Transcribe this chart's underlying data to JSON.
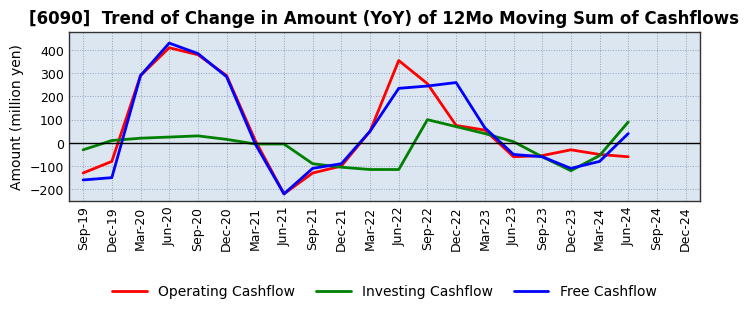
{
  "title": "[6090]  Trend of Change in Amount (YoY) of 12Mo Moving Sum of Cashflows",
  "ylabel": "Amount (million yen)",
  "x_labels": [
    "Sep-19",
    "Dec-19",
    "Mar-20",
    "Jun-20",
    "Sep-20",
    "Dec-20",
    "Mar-21",
    "Jun-21",
    "Sep-21",
    "Dec-21",
    "Mar-22",
    "Jun-22",
    "Sep-22",
    "Dec-22",
    "Mar-23",
    "Jun-23",
    "Sep-23",
    "Dec-23",
    "Mar-24",
    "Jun-24",
    "Sep-24",
    "Dec-24"
  ],
  "operating_cashflow": [
    -130,
    -80,
    290,
    410,
    380,
    290,
    10,
    -220,
    -130,
    -100,
    50,
    355,
    255,
    75,
    55,
    -60,
    -55,
    -30,
    -50,
    -60,
    null,
    null
  ],
  "investing_cashflow": [
    -30,
    10,
    20,
    25,
    30,
    15,
    -5,
    -5,
    -90,
    -105,
    -115,
    -115,
    100,
    70,
    40,
    5,
    -60,
    -120,
    -55,
    90,
    null,
    null
  ],
  "free_cashflow": [
    -160,
    -150,
    290,
    430,
    385,
    285,
    -5,
    -220,
    -110,
    -90,
    50,
    235,
    245,
    260,
    65,
    -50,
    -60,
    -110,
    -80,
    40,
    null,
    null
  ],
  "operating_color": "#ff0000",
  "investing_color": "#008000",
  "free_color": "#0000ff",
  "line_width": 2.0,
  "ylim": [
    -250,
    480
  ],
  "yticks": [
    -200,
    -100,
    0,
    100,
    200,
    300,
    400
  ],
  "bg_color": "#ffffff",
  "plot_bg_color": "#dce6f0",
  "grid_color": "#8899bb",
  "title_fontsize": 12,
  "axis_fontsize": 9,
  "legend_fontsize": 10
}
